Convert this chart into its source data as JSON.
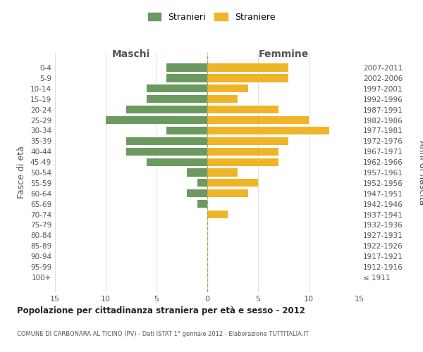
{
  "age_groups": [
    "0-4",
    "5-9",
    "10-14",
    "15-19",
    "20-24",
    "25-29",
    "30-34",
    "35-39",
    "40-44",
    "45-49",
    "50-54",
    "55-59",
    "60-64",
    "65-69",
    "70-74",
    "75-79",
    "80-84",
    "85-89",
    "90-94",
    "95-99",
    "100+"
  ],
  "birth_years": [
    "2007-2011",
    "2002-2006",
    "1997-2001",
    "1992-1996",
    "1987-1991",
    "1982-1986",
    "1977-1981",
    "1972-1976",
    "1967-1971",
    "1962-1966",
    "1957-1961",
    "1952-1956",
    "1947-1951",
    "1942-1946",
    "1937-1941",
    "1932-1936",
    "1927-1931",
    "1922-1926",
    "1917-1921",
    "1912-1916",
    "≤ 1911"
  ],
  "maschi": [
    4,
    4,
    6,
    6,
    8,
    10,
    4,
    8,
    8,
    6,
    2,
    1,
    2,
    1,
    0,
    0,
    0,
    0,
    0,
    0,
    0
  ],
  "femmine": [
    8,
    8,
    4,
    3,
    7,
    10,
    12,
    8,
    7,
    7,
    3,
    5,
    4,
    0,
    2,
    0,
    0,
    0,
    0,
    0,
    0
  ],
  "maschi_color": "#6a9a5f",
  "femmine_color": "#f0b429",
  "title": "Popolazione per cittadinanza straniera per età e sesso - 2012",
  "subtitle": "COMUNE DI CARBONARA AL TICINO (PV) - Dati ISTAT 1° gennaio 2012 - Elaborazione TUTTITALIA.IT",
  "xlabel_left": "Maschi",
  "xlabel_right": "Femmine",
  "ylabel_left": "Fasce di età",
  "ylabel_right": "Anni di nascita",
  "legend_maschi": "Stranieri",
  "legend_femmine": "Straniere",
  "xlim": 15,
  "background_color": "#ffffff",
  "grid_color": "#d0d0d0",
  "center_line_color": "#aaa860"
}
